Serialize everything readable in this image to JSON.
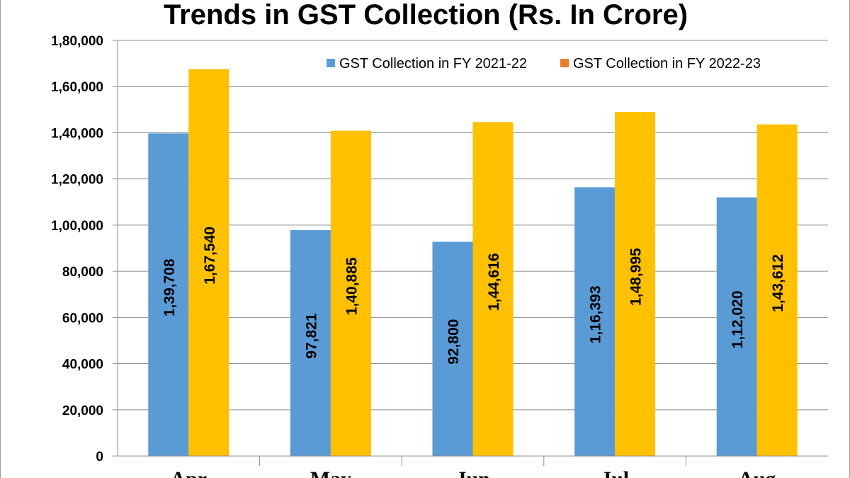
{
  "chart_data": {
    "type": "bar",
    "title": "Trends in GST Collection (Rs. In Crore)",
    "categories": [
      "Apr",
      "May",
      "Jun",
      "Jul",
      "Aug"
    ],
    "series": [
      {
        "name": "GST Collection in FY 2021-22",
        "color": "#5b9bd5",
        "values": [
          139708,
          97821,
          92800,
          116393,
          112020
        ],
        "labels": [
          "1,39,708",
          "97,821",
          "92,800",
          "1,16,393",
          "1,12,020"
        ]
      },
      {
        "name": "GST Collection in FY 2022-23",
        "color": "#ffc000",
        "legend_color": "#ed7d31",
        "values": [
          167540,
          140885,
          144616,
          148995,
          143612
        ],
        "labels": [
          "1,67,540",
          "1,40,885",
          "1,44,616",
          "1,48,995",
          "1,43,612"
        ]
      }
    ],
    "ylim": [
      0,
      180000
    ],
    "yticks": [
      "0",
      "20,000",
      "40,000",
      "60,000",
      "80,000",
      "1,00,000",
      "1,20,000",
      "1,40,000",
      "1,60,000",
      "1,80,000"
    ],
    "ytick_values": [
      0,
      20000,
      40000,
      60000,
      80000,
      100000,
      120000,
      140000,
      160000,
      180000
    ],
    "grid": true,
    "legend_position": "top-right",
    "xlabel": "",
    "ylabel": ""
  }
}
